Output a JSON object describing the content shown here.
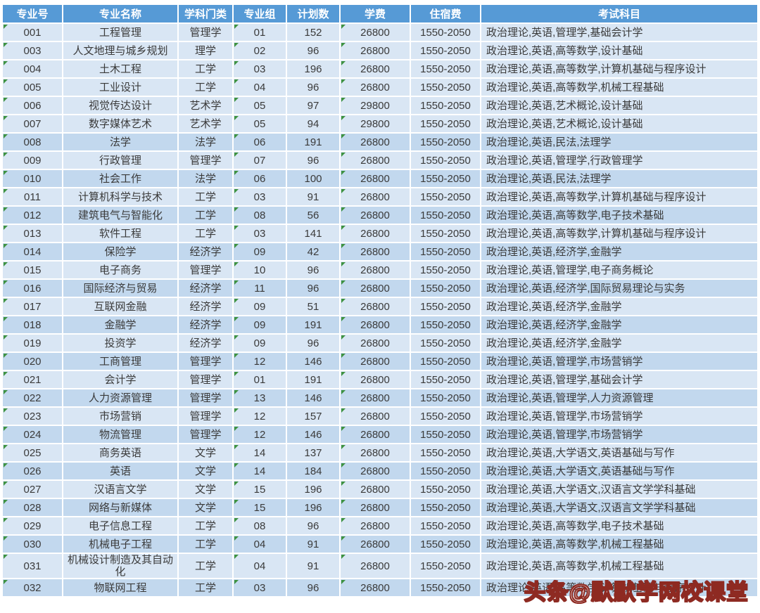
{
  "table": {
    "columns": [
      {
        "key": "id",
        "label": "专业号"
      },
      {
        "key": "name",
        "label": "专业名称"
      },
      {
        "key": "category",
        "label": "学科门类"
      },
      {
        "key": "group",
        "label": "专业组"
      },
      {
        "key": "plan",
        "label": "计划数"
      },
      {
        "key": "tuition",
        "label": "学费"
      },
      {
        "key": "accommodation",
        "label": "住宿费"
      },
      {
        "key": "subjects",
        "label": "考试科目"
      }
    ],
    "rows": [
      [
        "001",
        "工程管理",
        "管理学",
        "01",
        "152",
        "26800",
        "1550-2050",
        "政治理论,英语,管理学,基础会计学"
      ],
      [
        "003",
        "人文地理与城乡规划",
        "理学",
        "02",
        "96",
        "26800",
        "1550-2050",
        "政治理论,英语,高等数学,设计基础"
      ],
      [
        "004",
        "土木工程",
        "工学",
        "03",
        "196",
        "26800",
        "1550-2050",
        "政治理论,英语,高等数学,计算机基础与程序设计"
      ],
      [
        "005",
        "工业设计",
        "工学",
        "04",
        "96",
        "26800",
        "1550-2050",
        "政治理论,英语,高等数学,机械工程基础"
      ],
      [
        "006",
        "视觉传达设计",
        "艺术学",
        "05",
        "97",
        "29800",
        "1550-2050",
        "政治理论,英语,艺术概论,设计基础"
      ],
      [
        "007",
        "数字媒体艺术",
        "艺术学",
        "05",
        "94",
        "29800",
        "1550-2050",
        "政治理论,英语,艺术概论,设计基础"
      ],
      [
        "008",
        "法学",
        "法学",
        "06",
        "191",
        "26800",
        "1550-2050",
        "政治理论,英语,民法,法理学"
      ],
      [
        "009",
        "行政管理",
        "管理学",
        "07",
        "96",
        "26800",
        "1550-2050",
        "政治理论,英语,管理学,行政管理学"
      ],
      [
        "010",
        "社会工作",
        "法学",
        "06",
        "100",
        "26800",
        "1550-2050",
        "政治理论,英语,民法,法理学"
      ],
      [
        "011",
        "计算机科学与技术",
        "工学",
        "03",
        "91",
        "26800",
        "1550-2050",
        "政治理论,英语,高等数学,计算机基础与程序设计"
      ],
      [
        "012",
        "建筑电气与智能化",
        "工学",
        "08",
        "56",
        "26800",
        "1550-2050",
        "政治理论,英语,高等数学,电子技术基础"
      ],
      [
        "013",
        "软件工程",
        "工学",
        "03",
        "141",
        "26800",
        "1550-2050",
        "政治理论,英语,高等数学,计算机基础与程序设计"
      ],
      [
        "014",
        "保险学",
        "经济学",
        "09",
        "42",
        "26800",
        "1550-2050",
        "政治理论,英语,经济学,金融学"
      ],
      [
        "015",
        "电子商务",
        "管理学",
        "10",
        "96",
        "26800",
        "1550-2050",
        "政治理论,英语,管理学,电子商务概论"
      ],
      [
        "016",
        "国际经济与贸易",
        "经济学",
        "11",
        "96",
        "26800",
        "1550-2050",
        "政治理论,英语,经济学,国际贸易理论与实务"
      ],
      [
        "017",
        "互联网金融",
        "经济学",
        "09",
        "51",
        "26800",
        "1550-2050",
        "政治理论,英语,经济学,金融学"
      ],
      [
        "018",
        "金融学",
        "经济学",
        "09",
        "191",
        "26800",
        "1550-2050",
        "政治理论,英语,经济学,金融学"
      ],
      [
        "019",
        "投资学",
        "经济学",
        "09",
        "96",
        "26800",
        "1550-2050",
        "政治理论,英语,经济学,金融学"
      ],
      [
        "020",
        "工商管理",
        "管理学",
        "12",
        "146",
        "26800",
        "1550-2050",
        "政治理论,英语,管理学,市场营销学"
      ],
      [
        "021",
        "会计学",
        "管理学",
        "01",
        "191",
        "26800",
        "1550-2050",
        "政治理论,英语,管理学,基础会计学"
      ],
      [
        "022",
        "人力资源管理",
        "管理学",
        "13",
        "146",
        "26800",
        "1550-2050",
        "政治理论,英语,管理学,人力资源管理"
      ],
      [
        "023",
        "市场营销",
        "管理学",
        "12",
        "157",
        "26800",
        "1550-2050",
        "政治理论,英语,管理学,市场营销学"
      ],
      [
        "024",
        "物流管理",
        "管理学",
        "12",
        "146",
        "26800",
        "1550-2050",
        "政治理论,英语,管理学,市场营销学"
      ],
      [
        "025",
        "商务英语",
        "文学",
        "14",
        "137",
        "26800",
        "1550-2050",
        "政治理论,英语,大学语文,英语基础与写作"
      ],
      [
        "026",
        "英语",
        "文学",
        "14",
        "184",
        "26800",
        "1550-2050",
        "政治理论,英语,大学语文,英语基础与写作"
      ],
      [
        "027",
        "汉语言文学",
        "文学",
        "15",
        "196",
        "26800",
        "1550-2050",
        "政治理论,英语,大学语文,汉语言文学学科基础"
      ],
      [
        "028",
        "网络与新媒体",
        "文学",
        "15",
        "196",
        "26800",
        "1550-2050",
        "政治理论,英语,大学语文,汉语言文学学科基础"
      ],
      [
        "029",
        "电子信息工程",
        "工学",
        "08",
        "96",
        "26800",
        "1550-2050",
        "政治理论,英语,高等数学,电子技术基础"
      ],
      [
        "030",
        "机械电子工程",
        "工学",
        "04",
        "91",
        "26800",
        "1550-2050",
        "政治理论,英语,高等数学,机械工程基础"
      ],
      [
        "031",
        "机械设计制造及其自动化",
        "工学",
        "04",
        "91",
        "26800",
        "1550-2050",
        "政治理论,英语,高等数学,机械工程基础"
      ],
      [
        "032",
        "物联网工程",
        "工学",
        "03",
        "96",
        "26800",
        "1550-2050",
        "政治理论,英语,高等数学,计算机基础与程序设计"
      ]
    ]
  },
  "watermark": {
    "text": "头条@默默学网校课堂"
  },
  "colors": {
    "header_bg": "#569ad6",
    "header_text": "#ffffff",
    "row_light": "#d9e6f4",
    "row_dark": "#c2d8ee",
    "body_text": "#3a3a3a",
    "triangle": "#3e9241",
    "watermark_stroke": "#8e2a22",
    "watermark_fill": "#ffffff"
  }
}
